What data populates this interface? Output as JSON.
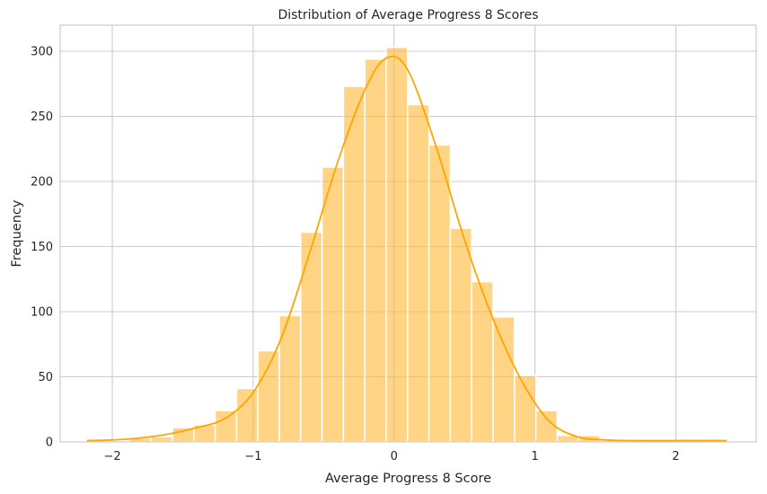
{
  "chart_data": {
    "type": "bar",
    "title": "Distribution of Average Progress 8 Scores",
    "xlabel": "Average Progress 8 Score",
    "ylabel": "Frequency",
    "xlim": [
      -2.37,
      2.57
    ],
    "ylim": [
      0,
      320
    ],
    "xticks": [
      -2,
      -1,
      0,
      1,
      2
    ],
    "xtick_labels": [
      "−2",
      "−1",
      "0",
      "1",
      "2"
    ],
    "yticks": [
      0,
      50,
      100,
      150,
      200,
      250,
      300
    ],
    "grid": true,
    "bin_start": -2.18,
    "bin_width": 0.1517,
    "counts": [
      1,
      1,
      3,
      4,
      11,
      13,
      24,
      41,
      70,
      97,
      161,
      211,
      273,
      294,
      303,
      259,
      228,
      164,
      123,
      96,
      51,
      24,
      5,
      5,
      1,
      1,
      1,
      1,
      1,
      1
    ],
    "kde": {
      "x": [
        -2.18,
        -2.0,
        -1.8,
        -1.6,
        -1.4,
        -1.2,
        -1.0,
        -0.8,
        -0.6,
        -0.4,
        -0.2,
        -0.05,
        0.1,
        0.3,
        0.5,
        0.7,
        0.9,
        1.1,
        1.3,
        1.5,
        1.7,
        2.0,
        2.2,
        2.36
      ],
      "y": [
        1,
        1.5,
        3,
        6,
        11,
        18,
        38,
        80,
        145,
        215,
        272,
        295,
        285,
        226,
        155,
        95,
        48,
        16,
        4,
        1.5,
        1,
        1,
        1,
        1
      ]
    },
    "colors": {
      "bar": "#ffb732",
      "line": "#ffa500",
      "grid": "#cccccc"
    }
  }
}
